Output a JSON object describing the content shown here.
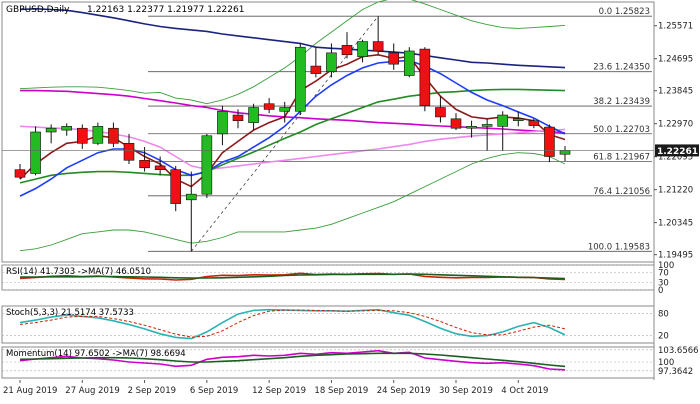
{
  "chart_data": {
    "type": "candlestick",
    "title": "GBPUSD,Daily",
    "ohlc_readout": "1.22163 1.22377 1.21977 1.22261",
    "current_price": "1.22261",
    "price_axis": {
      "min": 1.193,
      "max": 1.262,
      "ticks": [
        "1.25571",
        "1.24695",
        "1.23845",
        "1.22970",
        "1.22095",
        "1.21220",
        "1.20345",
        "1.19495"
      ]
    },
    "fibonacci": [
      {
        "label": "0.0 1.25823",
        "value": 1.25823
      },
      {
        "label": "23.6 1.24350",
        "value": 1.2435
      },
      {
        "label": "38.2 1.23439",
        "value": 1.23439
      },
      {
        "label": "50.0 1.22703",
        "value": 1.22703
      },
      {
        "label": "61.8 1.21967",
        "value": 1.21967
      },
      {
        "label": "76.4 1.21056",
        "value": 1.21056
      },
      {
        "label": "100.0 1.19583",
        "value": 1.19583
      }
    ],
    "x_labels": [
      "21 Aug 2019",
      "27 Aug 2019",
      "2 Sep 2019",
      "6 Sep 2019",
      "12 Sep 2019",
      "18 Sep 2019",
      "24 Sep 2019",
      "30 Sep 2019",
      "4 Oct 2019"
    ],
    "candles": [
      {
        "o": 1.2175,
        "h": 1.219,
        "l": 1.215,
        "c": 1.2155
      },
      {
        "o": 1.2165,
        "h": 1.229,
        "l": 1.216,
        "c": 1.2275
      },
      {
        "o": 1.2275,
        "h": 1.2295,
        "l": 1.2245,
        "c": 1.2285
      },
      {
        "o": 1.228,
        "h": 1.2298,
        "l": 1.2265,
        "c": 1.229
      },
      {
        "o": 1.2285,
        "h": 1.2295,
        "l": 1.223,
        "c": 1.2245
      },
      {
        "o": 1.2245,
        "h": 1.23,
        "l": 1.224,
        "c": 1.229
      },
      {
        "o": 1.2285,
        "h": 1.23,
        "l": 1.2235,
        "c": 1.2245
      },
      {
        "o": 1.2245,
        "h": 1.227,
        "l": 1.219,
        "c": 1.22
      },
      {
        "o": 1.22,
        "h": 1.2235,
        "l": 1.217,
        "c": 1.218
      },
      {
        "o": 1.2185,
        "h": 1.221,
        "l": 1.216,
        "c": 1.2175
      },
      {
        "o": 1.2175,
        "h": 1.2185,
        "l": 1.2065,
        "c": 1.2085
      },
      {
        "o": 1.2095,
        "h": 1.217,
        "l": 1.1958,
        "c": 1.211
      },
      {
        "o": 1.211,
        "h": 1.227,
        "l": 1.21,
        "c": 1.2265
      },
      {
        "o": 1.227,
        "h": 1.2345,
        "l": 1.224,
        "c": 1.233
      },
      {
        "o": 1.232,
        "h": 1.2335,
        "l": 1.2285,
        "c": 1.2305
      },
      {
        "o": 1.23,
        "h": 1.235,
        "l": 1.228,
        "c": 1.234
      },
      {
        "o": 1.235,
        "h": 1.2365,
        "l": 1.2325,
        "c": 1.2335
      },
      {
        "o": 1.233,
        "h": 1.2355,
        "l": 1.23,
        "c": 1.234
      },
      {
        "o": 1.233,
        "h": 1.251,
        "l": 1.232,
        "c": 1.25
      },
      {
        "o": 1.245,
        "h": 1.25,
        "l": 1.242,
        "c": 1.243
      },
      {
        "o": 1.2435,
        "h": 1.251,
        "l": 1.242,
        "c": 1.2485
      },
      {
        "o": 1.2505,
        "h": 1.254,
        "l": 1.247,
        "c": 1.248
      },
      {
        "o": 1.2475,
        "h": 1.252,
        "l": 1.246,
        "c": 1.2515
      },
      {
        "o": 1.2515,
        "h": 1.2582,
        "l": 1.248,
        "c": 1.249
      },
      {
        "o": 1.2485,
        "h": 1.251,
        "l": 1.244,
        "c": 1.2455
      },
      {
        "o": 1.2425,
        "h": 1.25,
        "l": 1.242,
        "c": 1.249
      },
      {
        "o": 1.2495,
        "h": 1.25,
        "l": 1.233,
        "c": 1.2345
      },
      {
        "o": 1.234,
        "h": 1.237,
        "l": 1.23,
        "c": 1.2315
      },
      {
        "o": 1.231,
        "h": 1.2325,
        "l": 1.228,
        "c": 1.2285
      },
      {
        "o": 1.2285,
        "h": 1.2305,
        "l": 1.226,
        "c": 1.229
      },
      {
        "o": 1.229,
        "h": 1.231,
        "l": 1.2225,
        "c": 1.2295
      },
      {
        "o": 1.229,
        "h": 1.233,
        "l": 1.2225,
        "c": 1.232
      },
      {
        "o": 1.2305,
        "h": 1.233,
        "l": 1.229,
        "c": 1.231
      },
      {
        "o": 1.2305,
        "h": 1.231,
        "l": 1.2285,
        "c": 1.2292
      },
      {
        "o": 1.2288,
        "h": 1.2295,
        "l": 1.2195,
        "c": 1.221
      },
      {
        "o": 1.2216,
        "h": 1.2238,
        "l": 1.2198,
        "c": 1.2226
      }
    ],
    "overlays": [
      {
        "color": "#1a237e",
        "values": [
          1.26,
          1.2602,
          1.26,
          1.2598,
          1.2592,
          1.2585,
          1.2578,
          1.257,
          1.2562,
          1.2555,
          1.255,
          1.2546,
          1.2542,
          1.2535,
          1.253,
          1.2525,
          1.252,
          1.2515,
          1.251,
          1.25,
          1.2497,
          1.2495,
          1.2492,
          1.249,
          1.2487,
          1.2484,
          1.2478,
          1.2472,
          1.2466,
          1.246,
          1.2458,
          1.2455,
          1.2452,
          1.245,
          1.2448,
          1.2446
        ]
      },
      {
        "color": "#cc00cc",
        "values": [
          1.2385,
          1.2385,
          1.2384,
          1.2383,
          1.238,
          1.2377,
          1.2374,
          1.237,
          1.2364,
          1.2358,
          1.2352,
          1.2345,
          1.234,
          1.2332,
          1.2326,
          1.2322,
          1.2318,
          1.2315,
          1.2313,
          1.231,
          1.2308,
          1.2306,
          1.2303,
          1.23,
          1.2298,
          1.2296,
          1.2293,
          1.2291,
          1.2289,
          1.2287,
          1.2285,
          1.2283,
          1.228,
          1.2278,
          1.2276,
          1.2273
        ]
      },
      {
        "color": "#ee88ee",
        "values": [
          1.229,
          1.2288,
          1.2286,
          1.2284,
          1.2281,
          1.2276,
          1.227,
          1.2262,
          1.225,
          1.2235,
          1.221,
          1.2185,
          1.2176,
          1.218,
          1.2185,
          1.219,
          1.2195,
          1.22,
          1.2205,
          1.221,
          1.2215,
          1.222,
          1.2225,
          1.223,
          1.2236,
          1.2242,
          1.225,
          1.2256,
          1.226,
          1.2264,
          1.2267,
          1.227,
          1.2273,
          1.2276,
          1.2279,
          1.2282
        ]
      },
      {
        "color": "#228b22",
        "values": [
          1.214,
          1.215,
          1.216,
          1.2165,
          1.2168,
          1.217,
          1.217,
          1.2168,
          1.2165,
          1.2162,
          1.216,
          1.216,
          1.217,
          1.2188,
          1.2205,
          1.2222,
          1.224,
          1.2258,
          1.2275,
          1.2295,
          1.231,
          1.2325,
          1.234,
          1.2355,
          1.2362,
          1.237,
          1.2375,
          1.238,
          1.2382,
          1.2385,
          1.2387,
          1.2388,
          1.2388,
          1.2387,
          1.2386,
          1.2385
        ]
      },
      {
        "color": "#1e3cff",
        "values": [
          1.2105,
          1.2125,
          1.215,
          1.218,
          1.22,
          1.222,
          1.223,
          1.223,
          1.222,
          1.22,
          1.2175,
          1.216,
          1.217,
          1.2195,
          1.221,
          1.2235,
          1.226,
          1.229,
          1.233,
          1.237,
          1.24,
          1.2425,
          1.2445,
          1.2458,
          1.2462,
          1.2465,
          1.245,
          1.243,
          1.2405,
          1.238,
          1.236,
          1.2345,
          1.2328,
          1.2312,
          1.229,
          1.227
        ]
      },
      {
        "color": "#8b1a1a",
        "values": [
          1.215,
          1.219,
          1.222,
          1.2245,
          1.225,
          1.2265,
          1.226,
          1.2235,
          1.221,
          1.219,
          1.215,
          1.213,
          1.2165,
          1.222,
          1.225,
          1.228,
          1.23,
          1.2315,
          1.2385,
          1.241,
          1.244,
          1.2455,
          1.2475,
          1.248,
          1.247,
          1.2475,
          1.242,
          1.237,
          1.2335,
          1.2315,
          1.231,
          1.2315,
          1.2312,
          1.2305,
          1.2268,
          1.2255
        ]
      }
    ],
    "bands": {
      "color": "#3a9e3a",
      "upper": [
        1.239,
        1.2392,
        1.2394,
        1.2395,
        1.2395,
        1.2394,
        1.239,
        1.2385,
        1.2378,
        1.238,
        1.2365,
        1.236,
        1.235,
        1.236,
        1.2375,
        1.2395,
        1.242,
        1.2445,
        1.2475,
        1.251,
        1.254,
        1.257,
        1.26,
        1.262,
        1.263,
        1.2628,
        1.2615,
        1.26,
        1.2585,
        1.257,
        1.256,
        1.2552,
        1.255,
        1.2552,
        1.2555,
        1.2558
      ],
      "lower": [
        1.196,
        1.1965,
        1.1975,
        1.199,
        1.2005,
        1.201,
        1.2015,
        1.2015,
        1.201,
        1.2,
        1.199,
        1.198,
        1.1985,
        1.1995,
        1.201,
        1.201,
        1.201,
        1.201,
        1.2015,
        1.202,
        1.203,
        1.2045,
        1.206,
        1.2075,
        1.209,
        1.211,
        1.213,
        1.215,
        1.217,
        1.219,
        1.2205,
        1.2215,
        1.222,
        1.2218,
        1.221,
        1.219
      ]
    },
    "panels": [
      {
        "title": "RSI(14) 41.7303  ->MA(7) 46.0510",
        "range": [
          0,
          100
        ],
        "ticks": [
          "100",
          "70",
          "30",
          "0"
        ],
        "tick_values": [
          100,
          70,
          30,
          0
        ],
        "lines": [
          {
            "color": "#cc2200",
            "values": [
              46,
              50,
              55,
              57,
              54,
              56,
              52,
              48,
              45,
              44,
              40,
              43,
              54,
              59,
              58,
              61,
              60,
              61,
              67,
              62,
              64,
              63,
              65,
              66,
              63,
              64,
              54,
              51,
              49,
              50,
              50,
              52,
              51,
              50,
              44,
              42
            ]
          },
          {
            "color": "#1b5e20",
            "values": [
              52,
              52,
              53,
              53,
              53,
              54,
              54,
              53,
              52,
              51,
              49,
              48,
              48,
              49,
              51,
              53,
              55,
              58,
              60,
              61,
              62,
              62,
              63,
              63,
              63,
              64,
              63,
              61,
              59,
              57,
              55,
              53,
              51,
              50,
              48,
              46
            ]
          }
        ]
      },
      {
        "title": "Stoch(5,3,3) 21.5174 37.5733",
        "range": [
          0,
          100
        ],
        "ticks": [
          "80",
          "20"
        ],
        "tick_values": [
          80,
          20
        ],
        "lines": [
          {
            "color": "#2ab3b3",
            "values": [
              55,
              62,
              70,
              76,
              72,
              68,
              60,
              50,
              38,
              25,
              15,
              12,
              30,
              55,
              78,
              88,
              90,
              89,
              88,
              87,
              87,
              86,
              88,
              90,
              82,
              75,
              58,
              40,
              25,
              18,
              20,
              30,
              45,
              55,
              42,
              22
            ]
          },
          {
            "color": "#cc2200",
            "dashed": true,
            "values": [
              50,
              55,
              62,
              70,
              72,
              72,
              66,
              58,
              48,
              36,
              24,
              16,
              18,
              33,
              55,
              74,
              86,
              89,
              89,
              88,
              87,
              86,
              87,
              88,
              87,
              82,
              72,
              58,
              42,
              28,
              22,
              22,
              32,
              43,
              48,
              38
            ]
          }
        ]
      },
      {
        "title": "Momentum(14) 97.6502  ->MA(7) 98.6694",
        "range": [
          95.2,
          104.5
        ],
        "ticks": [
          "103.6566",
          "100",
          "97.3642"
        ],
        "tick_values": [
          103.6566,
          100,
          97.3642
        ],
        "lines": [
          {
            "color": "#cc00cc",
            "values": [
              100.4,
              100.9,
              101.3,
              101.7,
              101.2,
              101.0,
              100.6,
              100.0,
              99.7,
              99.4,
              98.7,
              99.0,
              100.8,
              101.4,
              101.6,
              102.0,
              101.8,
              102.0,
              102.6,
              102.3,
              102.8,
              102.6,
              103.0,
              103.4,
              102.6,
              102.9,
              101.2,
              100.7,
              100.2,
              99.8,
              99.6,
              99.8,
              99.4,
              98.9,
              97.9,
              97.65
            ]
          },
          {
            "color": "#1b5e20",
            "values": [
              100.8,
              100.9,
              101.0,
              101.1,
              101.2,
              101.3,
              101.3,
              101.2,
              101.0,
              100.7,
              100.3,
              100.0,
              100.0,
              100.2,
              100.4,
              100.7,
              101.0,
              101.3,
              101.7,
              102.0,
              102.2,
              102.4,
              102.5,
              102.6,
              102.6,
              102.6,
              102.4,
              102.1,
              101.7,
              101.3,
              100.9,
              100.5,
              100.1,
              99.6,
              99.1,
              98.67
            ]
          }
        ]
      }
    ]
  }
}
